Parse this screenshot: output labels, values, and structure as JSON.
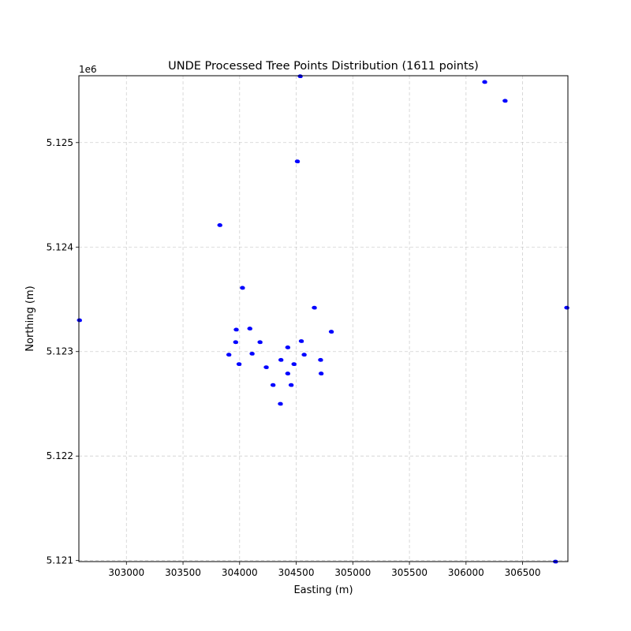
{
  "chart_data": {
    "type": "scatter",
    "title": "UNDE Processed Tree Points Distribution (1611 points)",
    "xlabel": "Easting (m)",
    "ylabel": "Northing (m)",
    "y_offset_label": "1e6",
    "xlim": [
      302580,
      306900
    ],
    "ylim": [
      5120990,
      5125640
    ],
    "x_ticks": [
      303000,
      303500,
      304000,
      304500,
      305000,
      305500,
      306000,
      306500
    ],
    "x_tick_labels": [
      "303000",
      "303500",
      "304000",
      "304500",
      "305000",
      "305500",
      "306000",
      "306500"
    ],
    "y_ticks": [
      5121000,
      5122000,
      5123000,
      5124000,
      5125000
    ],
    "y_tick_labels": [
      "5.121",
      "5.122",
      "5.123",
      "5.124",
      "5.125"
    ],
    "grid": true,
    "marker_color": "#0000ff",
    "series": [
      {
        "points": [
          [
            304535,
            5125635
          ],
          [
            306165,
            5125580
          ],
          [
            306345,
            5125400
          ],
          [
            304510,
            5124820
          ],
          [
            303825,
            5124210
          ],
          [
            304025,
            5123610
          ],
          [
            304660,
            5123420
          ],
          [
            306890,
            5123420
          ],
          [
            302585,
            5123300
          ],
          [
            303970,
            5123210
          ],
          [
            304090,
            5123220
          ],
          [
            304810,
            5123190
          ],
          [
            303965,
            5123090
          ],
          [
            304180,
            5123090
          ],
          [
            304545,
            5123100
          ],
          [
            304425,
            5123040
          ],
          [
            304570,
            5122970
          ],
          [
            303905,
            5122970
          ],
          [
            304110,
            5122980
          ],
          [
            304365,
            5122920
          ],
          [
            304480,
            5122880
          ],
          [
            304715,
            5122920
          ],
          [
            303995,
            5122880
          ],
          [
            304235,
            5122850
          ],
          [
            304425,
            5122790
          ],
          [
            304720,
            5122790
          ],
          [
            304295,
            5122680
          ],
          [
            304455,
            5122680
          ],
          [
            304360,
            5122500
          ],
          [
            306790,
            5120990
          ]
        ]
      }
    ]
  }
}
